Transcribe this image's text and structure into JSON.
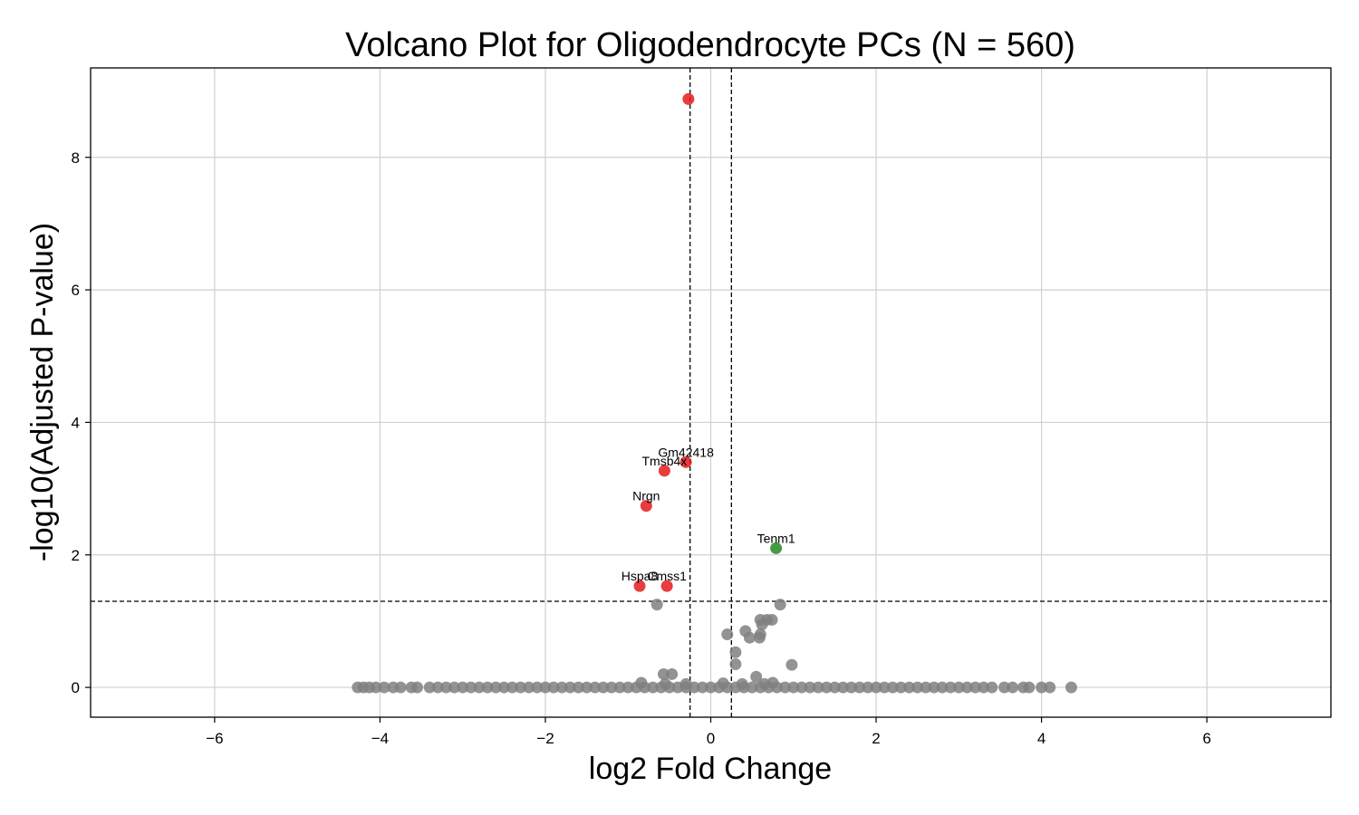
{
  "chart_data": {
    "type": "scatter",
    "title": "Volcano Plot for Oligodendrocyte PCs (N = 560)",
    "xlabel": "log2 Fold Change",
    "ylabel": "-log10(Adjusted P-value)",
    "xlim": [
      -7.5,
      7.5
    ],
    "ylim": [
      -0.45,
      9.35
    ],
    "xticks": [
      -6,
      -4,
      -2,
      0,
      2,
      4,
      6
    ],
    "xtick_labels": [
      "−6",
      "−4",
      "−2",
      "0",
      "2",
      "4",
      "6"
    ],
    "yticks": [
      0,
      2,
      4,
      6,
      8
    ],
    "ytick_labels": [
      "0",
      "2",
      "4",
      "6",
      "8"
    ],
    "grid": true,
    "thresholds": {
      "log2fc": [
        -0.25,
        0.25
      ],
      "neg_log10_padj": 1.3
    },
    "colors": {
      "down": "#e41a1c",
      "up": "#228b22",
      "ns": "#808080",
      "grid": "#d0d0d0",
      "threshold": "#000000"
    },
    "series": [
      {
        "group": "down",
        "points": [
          {
            "x": -0.27,
            "y": 8.88,
            "label": ""
          },
          {
            "x": -0.3,
            "y": 3.4,
            "label": "Gm42418"
          },
          {
            "x": -0.56,
            "y": 3.27,
            "label": "Tmsb4x"
          },
          {
            "x": -0.78,
            "y": 2.74,
            "label": "Nrgn"
          },
          {
            "x": -0.86,
            "y": 1.53,
            "label": "Hspa8"
          },
          {
            "x": -0.53,
            "y": 1.53,
            "label": "Cmss1"
          }
        ]
      },
      {
        "group": "up",
        "points": [
          {
            "x": 0.79,
            "y": 2.1,
            "label": "Tenm1"
          }
        ]
      },
      {
        "group": "ns",
        "points": [
          {
            "x": 0.84,
            "y": 1.25
          },
          {
            "x": -0.65,
            "y": 1.25
          },
          {
            "x": 0.6,
            "y": 1.02
          },
          {
            "x": 0.68,
            "y": 1.02
          },
          {
            "x": 0.74,
            "y": 1.02
          },
          {
            "x": 0.62,
            "y": 0.95
          },
          {
            "x": 0.42,
            "y": 0.85
          },
          {
            "x": 0.2,
            "y": 0.8
          },
          {
            "x": 0.6,
            "y": 0.8
          },
          {
            "x": 0.47,
            "y": 0.75
          },
          {
            "x": 0.59,
            "y": 0.75
          },
          {
            "x": 0.3,
            "y": 0.53
          },
          {
            "x": 0.3,
            "y": 0.35
          },
          {
            "x": 0.98,
            "y": 0.34
          },
          {
            "x": -0.57,
            "y": 0.2
          },
          {
            "x": -0.47,
            "y": 0.2
          },
          {
            "x": 0.55,
            "y": 0.16
          },
          {
            "x": -0.84,
            "y": 0.07
          },
          {
            "x": 0.15,
            "y": 0.06
          },
          {
            "x": 0.75,
            "y": 0.07
          },
          {
            "x": 0.38,
            "y": 0.05
          },
          {
            "x": 0.65,
            "y": 0.05
          },
          {
            "x": -0.3,
            "y": 0.05
          },
          {
            "x": -0.55,
            "y": 0.05
          },
          {
            "x": -4.27,
            "y": 0
          },
          {
            "x": -4.2,
            "y": 0
          },
          {
            "x": -4.13,
            "y": 0
          },
          {
            "x": -4.05,
            "y": 0
          },
          {
            "x": -3.95,
            "y": 0
          },
          {
            "x": -3.84,
            "y": 0
          },
          {
            "x": -3.75,
            "y": 0
          },
          {
            "x": -3.62,
            "y": 0
          },
          {
            "x": -3.55,
            "y": 0
          },
          {
            "x": -3.4,
            "y": 0
          },
          {
            "x": -3.3,
            "y": 0
          },
          {
            "x": -3.2,
            "y": 0
          },
          {
            "x": -3.1,
            "y": 0
          },
          {
            "x": -3.0,
            "y": 0
          },
          {
            "x": -2.9,
            "y": 0
          },
          {
            "x": -2.8,
            "y": 0
          },
          {
            "x": -2.7,
            "y": 0
          },
          {
            "x": -2.6,
            "y": 0
          },
          {
            "x": -2.5,
            "y": 0
          },
          {
            "x": -2.4,
            "y": 0
          },
          {
            "x": -2.3,
            "y": 0
          },
          {
            "x": -2.2,
            "y": 0
          },
          {
            "x": -2.1,
            "y": 0
          },
          {
            "x": -2.0,
            "y": 0
          },
          {
            "x": -1.9,
            "y": 0
          },
          {
            "x": -1.8,
            "y": 0
          },
          {
            "x": -1.7,
            "y": 0
          },
          {
            "x": -1.6,
            "y": 0
          },
          {
            "x": -1.5,
            "y": 0
          },
          {
            "x": -1.4,
            "y": 0
          },
          {
            "x": -1.3,
            "y": 0
          },
          {
            "x": -1.2,
            "y": 0
          },
          {
            "x": -1.1,
            "y": 0
          },
          {
            "x": -1.0,
            "y": 0
          },
          {
            "x": -0.9,
            "y": 0
          },
          {
            "x": -0.8,
            "y": 0
          },
          {
            "x": -0.7,
            "y": 0
          },
          {
            "x": -0.6,
            "y": 0
          },
          {
            "x": -0.5,
            "y": 0
          },
          {
            "x": -0.4,
            "y": 0
          },
          {
            "x": -0.3,
            "y": 0
          },
          {
            "x": -0.2,
            "y": 0
          },
          {
            "x": -0.1,
            "y": 0
          },
          {
            "x": 0.0,
            "y": 0
          },
          {
            "x": 0.1,
            "y": 0
          },
          {
            "x": 0.2,
            "y": 0
          },
          {
            "x": 0.3,
            "y": 0
          },
          {
            "x": 0.4,
            "y": 0
          },
          {
            "x": 0.5,
            "y": 0
          },
          {
            "x": 0.6,
            "y": 0
          },
          {
            "x": 0.7,
            "y": 0
          },
          {
            "x": 0.8,
            "y": 0
          },
          {
            "x": 0.9,
            "y": 0
          },
          {
            "x": 1.0,
            "y": 0
          },
          {
            "x": 1.1,
            "y": 0
          },
          {
            "x": 1.2,
            "y": 0
          },
          {
            "x": 1.3,
            "y": 0
          },
          {
            "x": 1.4,
            "y": 0
          },
          {
            "x": 1.5,
            "y": 0
          },
          {
            "x": 1.6,
            "y": 0
          },
          {
            "x": 1.7,
            "y": 0
          },
          {
            "x": 1.8,
            "y": 0
          },
          {
            "x": 1.9,
            "y": 0
          },
          {
            "x": 2.0,
            "y": 0
          },
          {
            "x": 2.1,
            "y": 0
          },
          {
            "x": 2.2,
            "y": 0
          },
          {
            "x": 2.3,
            "y": 0
          },
          {
            "x": 2.4,
            "y": 0
          },
          {
            "x": 2.5,
            "y": 0
          },
          {
            "x": 2.6,
            "y": 0
          },
          {
            "x": 2.7,
            "y": 0
          },
          {
            "x": 2.8,
            "y": 0
          },
          {
            "x": 2.9,
            "y": 0
          },
          {
            "x": 3.0,
            "y": 0
          },
          {
            "x": 3.1,
            "y": 0
          },
          {
            "x": 3.2,
            "y": 0
          },
          {
            "x": 3.3,
            "y": 0
          },
          {
            "x": 3.4,
            "y": 0
          },
          {
            "x": 3.55,
            "y": 0
          },
          {
            "x": 3.65,
            "y": 0
          },
          {
            "x": 3.78,
            "y": 0
          },
          {
            "x": 3.85,
            "y": 0
          },
          {
            "x": 4.0,
            "y": 0
          },
          {
            "x": 4.1,
            "y": 0
          },
          {
            "x": 4.36,
            "y": 0
          }
        ]
      }
    ]
  }
}
